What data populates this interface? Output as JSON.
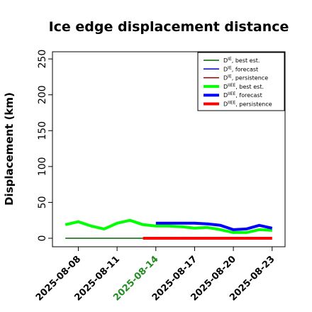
{
  "chart_data": {
    "type": "line",
    "title": "Ice edge displacement distance",
    "xlabel": "",
    "ylabel": "Displacement (km)",
    "ylim": [
      0,
      260
    ],
    "yticks": [
      0,
      50,
      100,
      150,
      200,
      250
    ],
    "xlim": [
      "2025-08-06",
      "2025-08-24"
    ],
    "xticks": [
      {
        "label": "2025-08-08",
        "x": "2025-08-08",
        "color": "#000000"
      },
      {
        "label": "2025-08-11",
        "x": "2025-08-11",
        "color": "#000000"
      },
      {
        "label": "2025-08-14",
        "x": "2025-08-14",
        "color": "#228B22"
      },
      {
        "label": "2025-08-17",
        "x": "2025-08-17",
        "color": "#000000"
      },
      {
        "label": "2025-08-20",
        "x": "2025-08-20",
        "color": "#000000"
      },
      {
        "label": "2025-08-23",
        "x": "2025-08-23",
        "color": "#000000"
      }
    ],
    "legend_position": "top-right",
    "series": [
      {
        "key": "de_best",
        "legend_base": "D",
        "legend_sup": "IE",
        "legend_suffix": ", best est.",
        "color": "#006400",
        "width": 1.5,
        "x": [
          "2025-08-07",
          "2025-08-13"
        ],
        "y": [
          0,
          0
        ]
      },
      {
        "key": "de_forecast",
        "legend_base": "D",
        "legend_sup": "IE",
        "legend_suffix": ", forecast",
        "color": "#0000CD",
        "width": 1.5,
        "x": [],
        "y": []
      },
      {
        "key": "de_persistence",
        "legend_base": "D",
        "legend_sup": "IE",
        "legend_suffix": ", persistence",
        "color": "#8B0000",
        "width": 1.5,
        "x": [],
        "y": []
      },
      {
        "key": "diiee_best",
        "legend_base": "D",
        "legend_sup": "IIEE",
        "legend_suffix": ", best est.",
        "color": "#00FF00",
        "width": 4,
        "x": [
          "2025-08-07",
          "2025-08-08",
          "2025-08-09",
          "2025-08-10",
          "2025-08-11",
          "2025-08-12",
          "2025-08-13",
          "2025-08-14",
          "2025-08-15",
          "2025-08-16",
          "2025-08-17",
          "2025-08-18",
          "2025-08-19",
          "2025-08-20",
          "2025-08-21",
          "2025-08-22",
          "2025-08-23"
        ],
        "y": [
          19,
          23,
          17,
          13,
          21,
          25,
          19,
          17,
          17,
          16,
          14,
          15,
          12,
          8,
          8,
          12,
          11
        ]
      },
      {
        "key": "diiee_forecast",
        "legend_base": "D",
        "legend_sup": "IIEE",
        "legend_suffix": ", forecast",
        "color": "#0000FF",
        "width": 4,
        "x": [
          "2025-08-14",
          "2025-08-15",
          "2025-08-16",
          "2025-08-17",
          "2025-08-18",
          "2025-08-19",
          "2025-08-20",
          "2025-08-21",
          "2025-08-22",
          "2025-08-23"
        ],
        "y": [
          21,
          21,
          21,
          21,
          20,
          18,
          12,
          13,
          18,
          14
        ]
      },
      {
        "key": "diiee_persistence",
        "legend_base": "D",
        "legend_sup": "IIEE",
        "legend_suffix": ", persistence",
        "color": "#FF0000",
        "width": 4,
        "x": [
          "2025-08-13",
          "2025-08-23"
        ],
        "y": [
          0,
          0
        ]
      }
    ]
  }
}
